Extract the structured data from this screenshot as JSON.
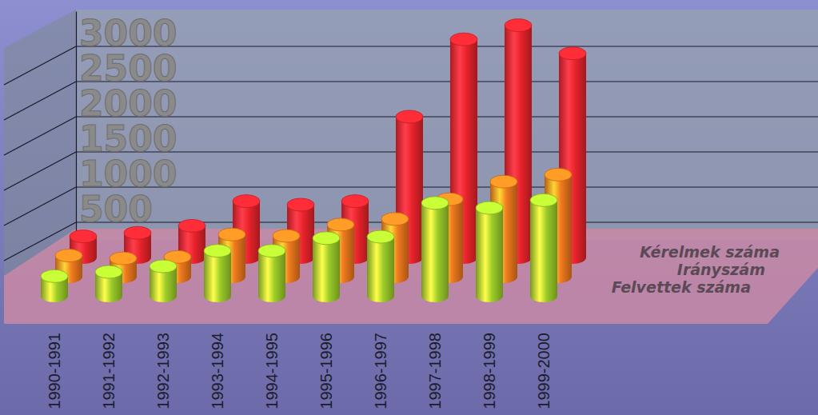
{
  "chart_data": {
    "type": "bar",
    "categories": [
      "1990-1991",
      "1991-1992",
      "1992-1993",
      "1993-1994",
      "1994-1995",
      "1995-1996",
      "1996-1997",
      "1997-1998",
      "1998-1999",
      "1999-2000"
    ],
    "series": [
      {
        "name": "Kérelmek száma",
        "color": "#e8232b",
        "values": [
          300,
          350,
          450,
          800,
          750,
          800,
          2000,
          3100,
          3300,
          2900
        ]
      },
      {
        "name": "Irányszám",
        "color": "#f07a1e",
        "values": [
          300,
          260,
          280,
          600,
          580,
          740,
          820,
          1100,
          1350,
          1450
        ]
      },
      {
        "name": "Felvettek száma",
        "color": "#9ccc2a",
        "values": [
          280,
          340,
          420,
          640,
          640,
          820,
          840,
          1320,
          1250,
          1360
        ]
      }
    ],
    "ylim": [
      0,
      3500
    ],
    "yticks": [
      500,
      1000,
      1500,
      2000,
      2500,
      3000
    ],
    "grid": true,
    "legend": "right"
  }
}
